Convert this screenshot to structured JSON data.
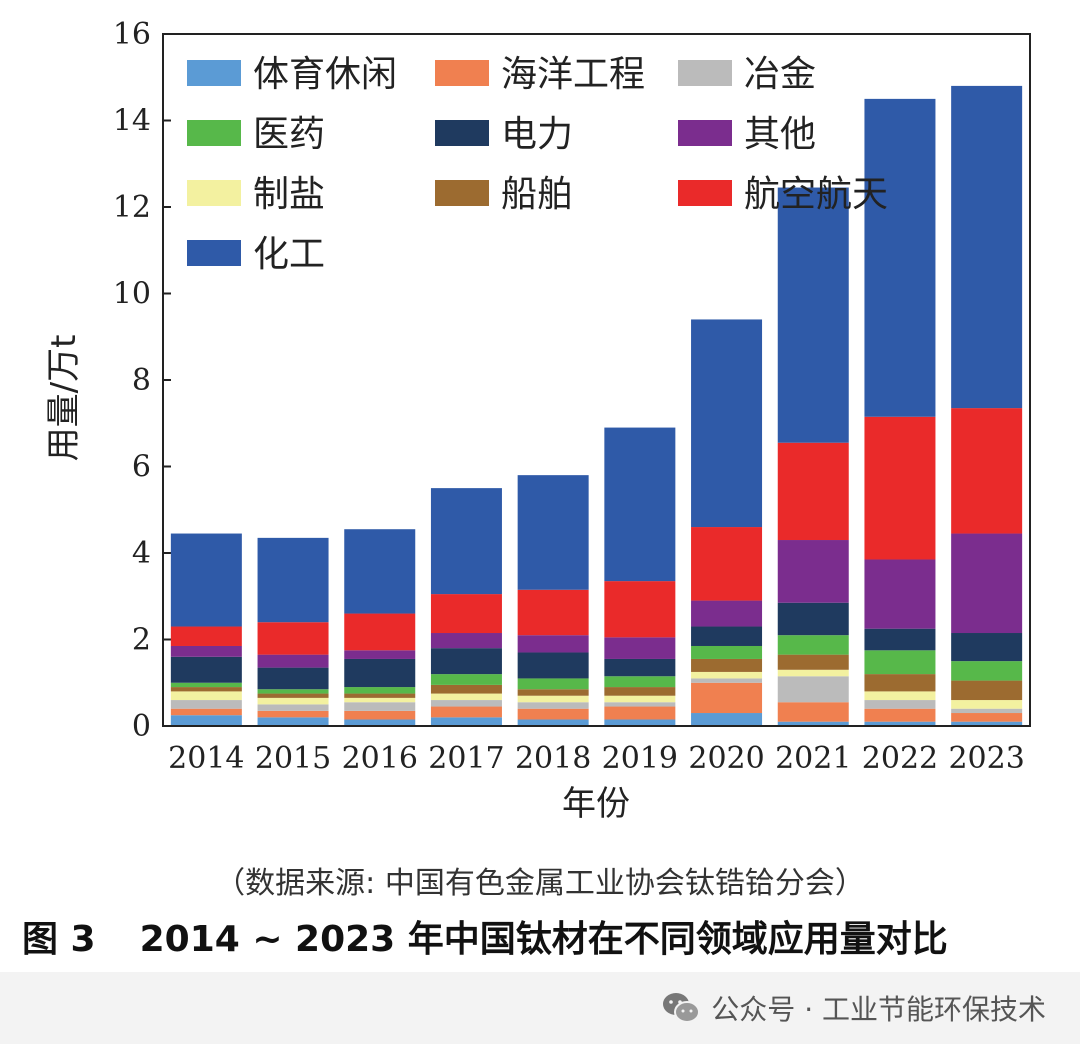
{
  "chart_data": {
    "type": "bar",
    "stacked": true,
    "title": "",
    "xlabel": "年份",
    "ylabel": "用量/万t",
    "ylim": [
      0,
      16
    ],
    "yticks": [
      0,
      2,
      4,
      6,
      8,
      10,
      12,
      14,
      16
    ],
    "categories": [
      "2014",
      "2015",
      "2016",
      "2017",
      "2018",
      "2019",
      "2020",
      "2021",
      "2022",
      "2023"
    ],
    "series": [
      {
        "name": "体育休闲",
        "color": "#5b9bd5",
        "values": [
          0.25,
          0.2,
          0.15,
          0.2,
          0.15,
          0.15,
          0.3,
          0.1,
          0.1,
          0.1
        ]
      },
      {
        "name": "海洋工程",
        "color": "#f08050",
        "values": [
          0.15,
          0.15,
          0.2,
          0.25,
          0.25,
          0.3,
          0.7,
          0.45,
          0.3,
          0.2
        ]
      },
      {
        "name": "冶金",
        "color": "#bbbbbb",
        "values": [
          0.2,
          0.15,
          0.2,
          0.15,
          0.15,
          0.1,
          0.1,
          0.6,
          0.2,
          0.1
        ]
      },
      {
        "name": "制盐",
        "color": "#f3f1a0",
        "values": [
          0.2,
          0.15,
          0.1,
          0.15,
          0.15,
          0.15,
          0.15,
          0.15,
          0.2,
          0.2
        ]
      },
      {
        "name": "船舶",
        "color": "#9c6b30",
        "values": [
          0.1,
          0.1,
          0.1,
          0.2,
          0.15,
          0.2,
          0.3,
          0.35,
          0.4,
          0.45
        ]
      },
      {
        "name": "医药",
        "color": "#57b84a",
        "values": [
          0.1,
          0.1,
          0.15,
          0.25,
          0.25,
          0.25,
          0.3,
          0.45,
          0.55,
          0.45
        ]
      },
      {
        "name": "电力",
        "color": "#1f3a5f",
        "values": [
          0.6,
          0.5,
          0.65,
          0.6,
          0.6,
          0.4,
          0.45,
          0.75,
          0.5,
          0.65
        ]
      },
      {
        "name": "其他",
        "color": "#7b2d8e",
        "values": [
          0.25,
          0.3,
          0.2,
          0.35,
          0.4,
          0.5,
          0.6,
          1.45,
          1.6,
          2.3
        ]
      },
      {
        "name": "航空航天",
        "color": "#ea2a2a",
        "values": [
          0.45,
          0.75,
          0.85,
          0.9,
          1.05,
          1.3,
          1.7,
          2.25,
          3.3,
          2.9
        ]
      },
      {
        "name": "化工",
        "color": "#2f5aa8",
        "values": [
          2.15,
          1.95,
          1.95,
          2.45,
          2.65,
          3.55,
          4.8,
          5.9,
          7.35,
          7.45
        ]
      }
    ],
    "legend": {
      "placement": "top-left",
      "order": [
        "体育休闲",
        "海洋工程",
        "冶金",
        "医药",
        "电力",
        "其他",
        "制盐",
        "船舶",
        "航空航天",
        "化工"
      ]
    }
  },
  "source_note": "（数据来源: 中国有色金属工业协会钛锆铪分会）",
  "caption": {
    "figure_number": "图 3",
    "text": "2014 ~ 2023 年中国钛材在不同领域应用量对比"
  },
  "watermark": {
    "icon": "wechat-icon",
    "text": "公众号 · 工业节能环保技术"
  }
}
